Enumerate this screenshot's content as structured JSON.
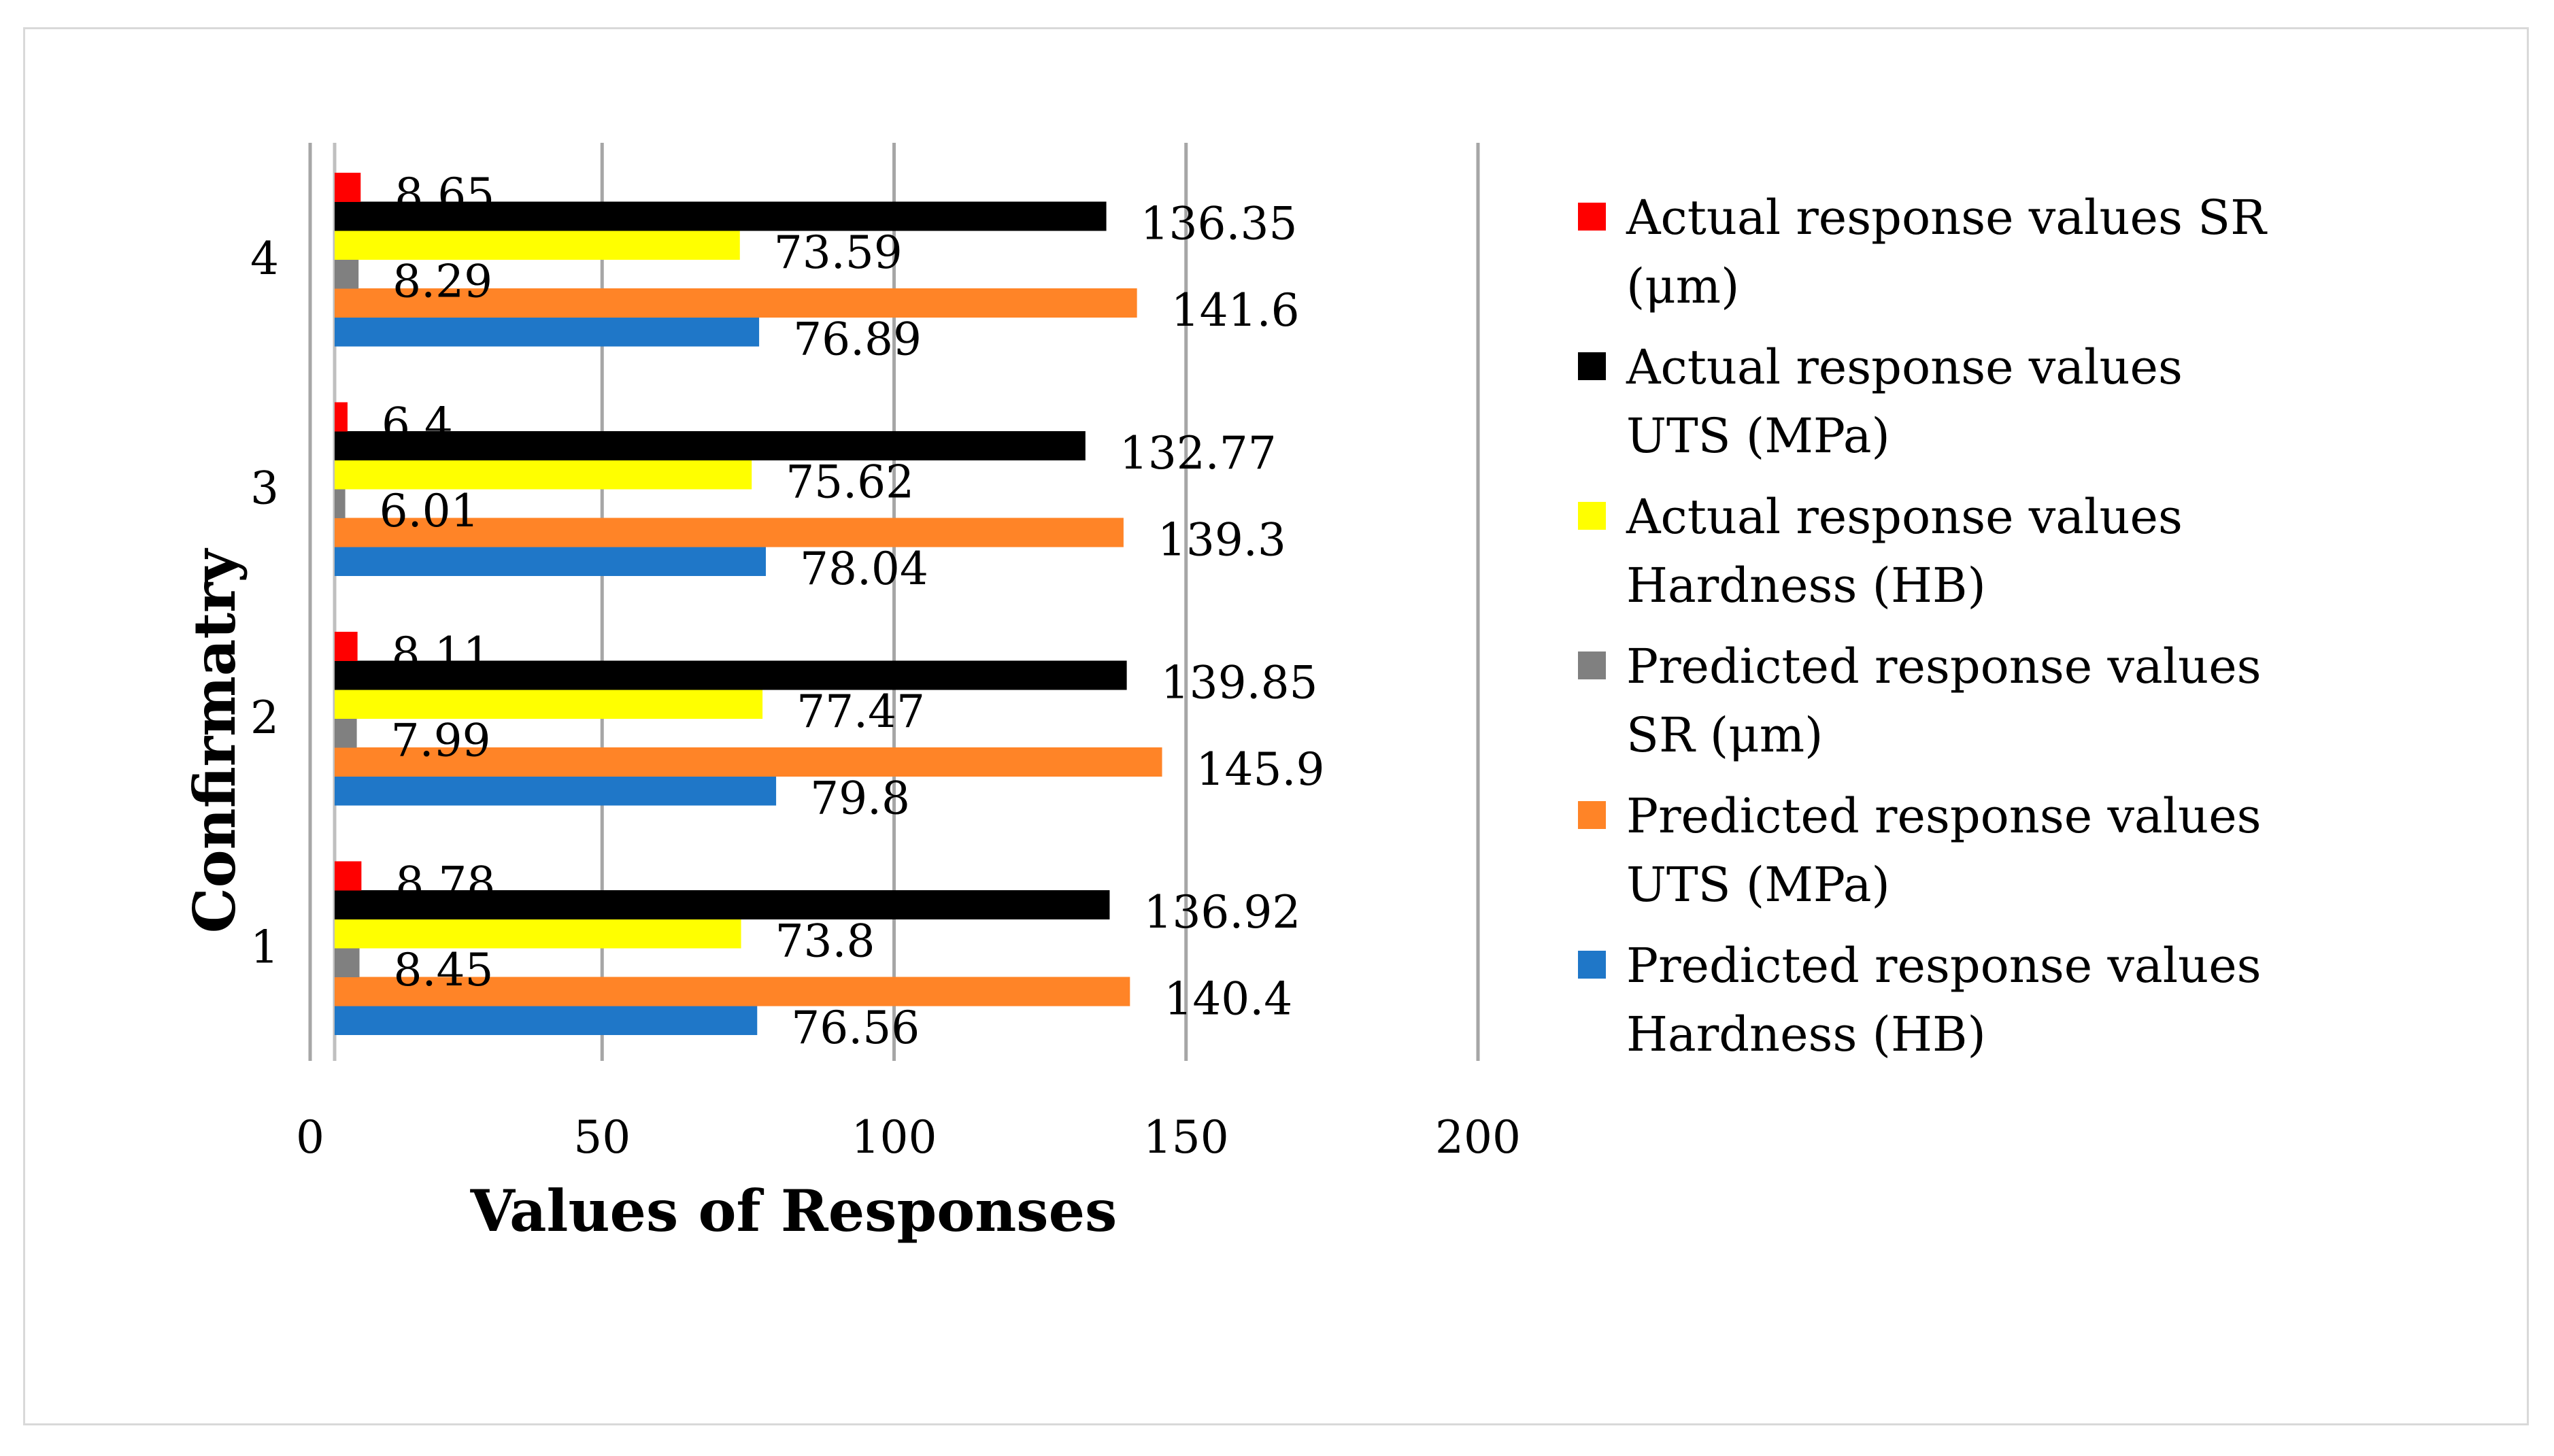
{
  "chart_data": {
    "type": "bar",
    "orientation": "horizontal",
    "categories": [
      "1",
      "2",
      "3",
      "4"
    ],
    "xlabel": "Values of Responses",
    "ylabel": "Confirmatry",
    "xlim": [
      0,
      200
    ],
    "xticks": [
      0,
      50,
      100,
      150,
      200
    ],
    "grid": true,
    "legend_position": "right",
    "series": [
      {
        "name": "Predicted response values Hardness (HB)",
        "color": "#1f77c8",
        "values": [
          76.56,
          79.8,
          78.04,
          76.89
        ]
      },
      {
        "name": "Predicted response values UTS (MPa)",
        "color": "#ff8427",
        "values": [
          140.4,
          145.9,
          139.3,
          141.6
        ]
      },
      {
        "name": "Predicted response values SR (μm)",
        "color": "#808080",
        "values": [
          8.45,
          7.99,
          6.01,
          8.29
        ]
      },
      {
        "name": "Actual response values Hardness (HB)",
        "color": "#ffff00",
        "values": [
          73.8,
          77.47,
          75.62,
          73.59
        ]
      },
      {
        "name": "Actual response values UTS (MPa)",
        "color": "#000000",
        "values": [
          136.92,
          139.85,
          132.77,
          136.35
        ]
      },
      {
        "name": "Actual response values SR (μm)",
        "color": "#ff0000",
        "values": [
          8.78,
          8.11,
          6.4,
          8.65
        ]
      }
    ]
  }
}
